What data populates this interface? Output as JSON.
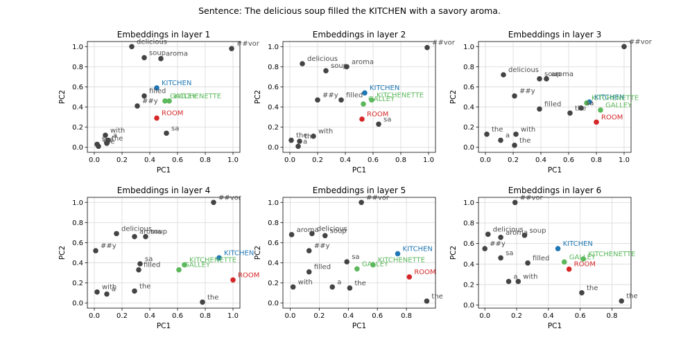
{
  "figure": {
    "suptitle": "Sentence: The delicious soup filled the KITCHEN with a savory aroma."
  },
  "colors": {
    "token": "#444444",
    "token_label": "#4a4a4a",
    "KITCHEN": "#1f77b4",
    "GALLEY": "#5cb85c",
    "KITCHENETTE": "#5cb85c",
    "ROOM": "#d62728",
    "grid": "#d8d8d8"
  },
  "chart_data": [
    {
      "type": "scatter",
      "title": "Embeddings in layer 1",
      "xlabel": "PC1",
      "ylabel": "PC2",
      "xlim": [
        -0.05,
        1.05
      ],
      "ylim": [
        -0.05,
        1.05
      ],
      "xticks": [
        "0.0",
        "0.2",
        "0.4",
        "0.6",
        "0.8",
        "1.0"
      ],
      "yticks": [
        "0.0",
        "0.2",
        "0.4",
        "0.6",
        "0.8",
        "1.0"
      ],
      "grid": true,
      "points": [
        {
          "label": "delicious",
          "x": 0.27,
          "y": 1.0,
          "group": "token"
        },
        {
          "label": "soup",
          "x": 0.36,
          "y": 0.89,
          "group": "token"
        },
        {
          "label": "aroma",
          "x": 0.48,
          "y": 0.88,
          "group": "token"
        },
        {
          "label": "##vor",
          "x": 0.99,
          "y": 0.98,
          "group": "token"
        },
        {
          "label": "KITCHEN",
          "x": 0.45,
          "y": 0.59,
          "group": "KITCHEN"
        },
        {
          "label": "filled",
          "x": 0.36,
          "y": 0.51,
          "group": "token"
        },
        {
          "label": "GALLEY",
          "x": 0.51,
          "y": 0.46,
          "group": "GALLEY"
        },
        {
          "label": "KITCHENETTE",
          "x": 0.54,
          "y": 0.46,
          "group": "KITCHENETTE"
        },
        {
          "label": "##y",
          "x": 0.31,
          "y": 0.41,
          "group": "token"
        },
        {
          "label": "ROOM",
          "x": 0.45,
          "y": 0.29,
          "group": "ROOM"
        },
        {
          "label": "sa",
          "x": 0.52,
          "y": 0.14,
          "group": "token"
        },
        {
          "label": "with",
          "x": 0.08,
          "y": 0.12,
          "group": "token"
        },
        {
          "label": "a",
          "x": 0.1,
          "y": 0.07,
          "group": "token"
        },
        {
          "label": "the",
          "x": 0.02,
          "y": 0.03,
          "group": "token"
        },
        {
          "label": "the",
          "x": 0.03,
          "y": 0.01,
          "group": "token"
        },
        {
          "label": "the",
          "x": 0.09,
          "y": 0.04,
          "group": "token"
        }
      ]
    },
    {
      "type": "scatter",
      "title": "Embeddings in layer 2",
      "xlabel": "PC1",
      "ylabel": "PC2",
      "xlim": [
        -0.05,
        1.05
      ],
      "ylim": [
        -0.05,
        1.05
      ],
      "xticks": [
        "0.0",
        "0.2",
        "0.4",
        "0.6",
        "0.8",
        "1.0"
      ],
      "yticks": [
        "0.0",
        "0.2",
        "0.4",
        "0.6",
        "0.8",
        "1.0"
      ],
      "grid": true,
      "points": [
        {
          "label": "delicious",
          "x": 0.09,
          "y": 0.83,
          "group": "token"
        },
        {
          "label": "soup",
          "x": 0.26,
          "y": 0.76,
          "group": "token"
        },
        {
          "label": "aroma",
          "x": 0.41,
          "y": 0.8,
          "group": "token"
        },
        {
          "label": "##vor",
          "x": 0.99,
          "y": 0.99,
          "group": "token"
        },
        {
          "label": "KITCHEN",
          "x": 0.54,
          "y": 0.54,
          "group": "KITCHEN"
        },
        {
          "label": "KITCHENETTE",
          "x": 0.59,
          "y": 0.47,
          "group": "KITCHENETTE"
        },
        {
          "label": "filled",
          "x": 0.37,
          "y": 0.47,
          "group": "token"
        },
        {
          "label": "GALLEY",
          "x": 0.53,
          "y": 0.43,
          "group": "GALLEY"
        },
        {
          "label": "##y",
          "x": 0.2,
          "y": 0.47,
          "group": "token"
        },
        {
          "label": "ROOM",
          "x": 0.52,
          "y": 0.28,
          "group": "ROOM"
        },
        {
          "label": "sa",
          "x": 0.64,
          "y": 0.23,
          "group": "token"
        },
        {
          "label": "with",
          "x": 0.17,
          "y": 0.11,
          "group": "token"
        },
        {
          "label": "the",
          "x": 0.01,
          "y": 0.07,
          "group": "token"
        },
        {
          "label": "the",
          "x": 0.07,
          "y": 0.06,
          "group": "token"
        },
        {
          "label": "a",
          "x": 0.06,
          "y": 0.01,
          "group": "token"
        }
      ]
    },
    {
      "type": "scatter",
      "title": "Embeddings in layer 3",
      "xlabel": "PC1",
      "ylabel": "PC2",
      "xlim": [
        -0.05,
        1.05
      ],
      "ylim": [
        -0.05,
        1.05
      ],
      "xticks": [
        "0.0",
        "0.2",
        "0.4",
        "0.6",
        "0.8",
        "1.0"
      ],
      "yticks": [
        "0.0",
        "0.2",
        "0.4",
        "0.6",
        "0.8",
        "1.0"
      ],
      "grid": true,
      "points": [
        {
          "label": "delicious",
          "x": 0.13,
          "y": 0.72,
          "group": "token"
        },
        {
          "label": "soup",
          "x": 0.39,
          "y": 0.68,
          "group": "token"
        },
        {
          "label": "aroma",
          "x": 0.44,
          "y": 0.68,
          "group": "token"
        },
        {
          "label": "##vor",
          "x": 1.0,
          "y": 1.0,
          "group": "token"
        },
        {
          "label": "##y",
          "x": 0.21,
          "y": 0.51,
          "group": "token"
        },
        {
          "label": "KITCHEN",
          "x": 0.75,
          "y": 0.45,
          "group": "KITCHEN"
        },
        {
          "label": "KITCHENETTE",
          "x": 0.73,
          "y": 0.44,
          "group": "KITCHENETTE"
        },
        {
          "label": "GALLEY",
          "x": 0.83,
          "y": 0.37,
          "group": "GALLEY"
        },
        {
          "label": "sa",
          "x": 0.69,
          "y": 0.39,
          "group": "token"
        },
        {
          "label": "filled",
          "x": 0.39,
          "y": 0.38,
          "group": "token"
        },
        {
          "label": "ROOM",
          "x": 0.8,
          "y": 0.25,
          "group": "ROOM"
        },
        {
          "label": "the",
          "x": 0.61,
          "y": 0.34,
          "group": "token"
        },
        {
          "label": "the",
          "x": 0.01,
          "y": 0.13,
          "group": "token"
        },
        {
          "label": "with",
          "x": 0.22,
          "y": 0.13,
          "group": "token"
        },
        {
          "label": "a",
          "x": 0.11,
          "y": 0.07,
          "group": "token"
        },
        {
          "label": "the",
          "x": 0.21,
          "y": 0.02,
          "group": "token"
        }
      ]
    },
    {
      "type": "scatter",
      "title": "Embeddings in layer 4",
      "xlabel": "PC1",
      "ylabel": "PC2",
      "xlim": [
        -0.05,
        1.05
      ],
      "ylim": [
        -0.05,
        1.05
      ],
      "xticks": [
        "0.0",
        "0.2",
        "0.4",
        "0.6",
        "0.8",
        "1.0"
      ],
      "yticks": [
        "0.0",
        "0.2",
        "0.4",
        "0.6",
        "0.8",
        "1.0"
      ],
      "grid": true,
      "points": [
        {
          "label": "##vor",
          "x": 0.86,
          "y": 1.0,
          "group": "token"
        },
        {
          "label": "delicious",
          "x": 0.16,
          "y": 0.69,
          "group": "token"
        },
        {
          "label": "aroma",
          "x": 0.29,
          "y": 0.66,
          "group": "token"
        },
        {
          "label": "soup",
          "x": 0.37,
          "y": 0.66,
          "group": "token"
        },
        {
          "label": "##y",
          "x": 0.01,
          "y": 0.52,
          "group": "token"
        },
        {
          "label": "KITCHEN",
          "x": 0.9,
          "y": 0.45,
          "group": "KITCHEN"
        },
        {
          "label": "sa",
          "x": 0.33,
          "y": 0.39,
          "group": "token"
        },
        {
          "label": "KITCHENETTE",
          "x": 0.65,
          "y": 0.38,
          "group": "KITCHENETTE"
        },
        {
          "label": "filled",
          "x": 0.32,
          "y": 0.33,
          "group": "token"
        },
        {
          "label": "GALLEY",
          "x": 0.61,
          "y": 0.33,
          "group": "GALLEY"
        },
        {
          "label": "ROOM",
          "x": 1.0,
          "y": 0.23,
          "group": "ROOM"
        },
        {
          "label": "the",
          "x": 0.29,
          "y": 0.12,
          "group": "token"
        },
        {
          "label": "with",
          "x": 0.02,
          "y": 0.11,
          "group": "token"
        },
        {
          "label": "a",
          "x": 0.09,
          "y": 0.09,
          "group": "token"
        },
        {
          "label": "the",
          "x": 0.78,
          "y": 0.01,
          "group": "token"
        }
      ]
    },
    {
      "type": "scatter",
      "title": "Embeddings in layer 5",
      "xlabel": "PC1",
      "ylabel": "PC2",
      "xlim": [
        -0.05,
        1.0
      ],
      "ylim": [
        -0.05,
        1.05
      ],
      "xticks": [
        "0.0",
        "0.2",
        "0.4",
        "0.6",
        "0.8"
      ],
      "yticks": [
        "0.0",
        "0.2",
        "0.4",
        "0.6",
        "0.8",
        "1.0"
      ],
      "grid": true,
      "points": [
        {
          "label": "##vor",
          "x": 0.49,
          "y": 1.0,
          "group": "token"
        },
        {
          "label": "aroma",
          "x": 0.01,
          "y": 0.68,
          "group": "token"
        },
        {
          "label": "delicious",
          "x": 0.15,
          "y": 0.69,
          "group": "token"
        },
        {
          "label": "soup",
          "x": 0.24,
          "y": 0.67,
          "group": "token"
        },
        {
          "label": "##y",
          "x": 0.13,
          "y": 0.52,
          "group": "token"
        },
        {
          "label": "KITCHEN",
          "x": 0.74,
          "y": 0.49,
          "group": "KITCHEN"
        },
        {
          "label": "sa",
          "x": 0.39,
          "y": 0.41,
          "group": "token"
        },
        {
          "label": "KITCHENETTE",
          "x": 0.57,
          "y": 0.38,
          "group": "KITCHENETTE"
        },
        {
          "label": "GALLEY",
          "x": 0.46,
          "y": 0.34,
          "group": "GALLEY"
        },
        {
          "label": "filled",
          "x": 0.13,
          "y": 0.31,
          "group": "token"
        },
        {
          "label": "ROOM",
          "x": 0.82,
          "y": 0.26,
          "group": "ROOM"
        },
        {
          "label": "a",
          "x": 0.29,
          "y": 0.16,
          "group": "token"
        },
        {
          "label": "the",
          "x": 0.41,
          "y": 0.15,
          "group": "token"
        },
        {
          "label": "with",
          "x": 0.02,
          "y": 0.16,
          "group": "token"
        },
        {
          "label": "the",
          "x": 0.94,
          "y": 0.02,
          "group": "token"
        }
      ]
    },
    {
      "type": "scatter",
      "title": "Embeddings in layer 6",
      "xlabel": "PC1",
      "ylabel": "PC2",
      "xlim": [
        -0.04,
        0.92
      ],
      "ylim": [
        -0.03,
        1.05
      ],
      "xticks": [
        "0.0",
        "0.2",
        "0.4",
        "0.6",
        "0.8"
      ],
      "yticks": [
        "0.0",
        "0.2",
        "0.4",
        "0.6",
        "0.8",
        "1.0"
      ],
      "grid": true,
      "points": [
        {
          "label": "##vor",
          "x": 0.19,
          "y": 1.0,
          "group": "token"
        },
        {
          "label": "delicious",
          "x": 0.02,
          "y": 0.69,
          "group": "token"
        },
        {
          "label": "aroma",
          "x": 0.1,
          "y": 0.66,
          "group": "token"
        },
        {
          "label": "soup",
          "x": 0.25,
          "y": 0.68,
          "group": "token"
        },
        {
          "label": "##y",
          "x": 0.0,
          "y": 0.55,
          "group": "token"
        },
        {
          "label": "KITCHEN",
          "x": 0.46,
          "y": 0.55,
          "group": "KITCHEN"
        },
        {
          "label": "sa",
          "x": 0.1,
          "y": 0.46,
          "group": "token"
        },
        {
          "label": "KITCHENETTE",
          "x": 0.62,
          "y": 0.45,
          "group": "KITCHENETTE"
        },
        {
          "label": "GALLEY",
          "x": 0.5,
          "y": 0.42,
          "group": "GALLEY"
        },
        {
          "label": "filled",
          "x": 0.27,
          "y": 0.41,
          "group": "token"
        },
        {
          "label": "ROOM",
          "x": 0.53,
          "y": 0.35,
          "group": "ROOM"
        },
        {
          "label": "a",
          "x": 0.15,
          "y": 0.23,
          "group": "token"
        },
        {
          "label": "with",
          "x": 0.21,
          "y": 0.23,
          "group": "token"
        },
        {
          "label": "the",
          "x": 0.61,
          "y": 0.12,
          "group": "token"
        },
        {
          "label": "the",
          "x": 0.86,
          "y": 0.04,
          "group": "token"
        }
      ]
    }
  ]
}
